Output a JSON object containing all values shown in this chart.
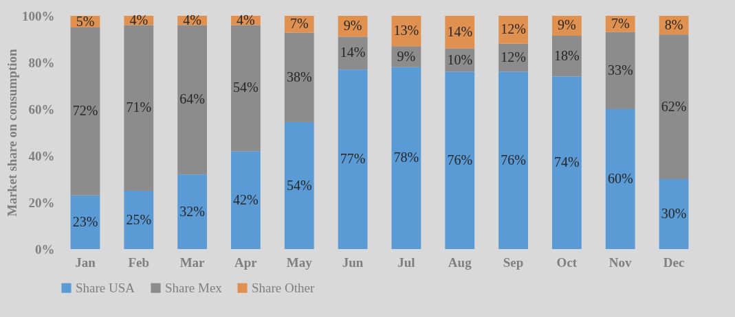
{
  "chart_data": {
    "type": "bar",
    "stacked": true,
    "ylabel": "Market share on consumption",
    "categories": [
      "Jan",
      "Feb",
      "Mar",
      "Apr",
      "May",
      "Jun",
      "Jul",
      "Aug",
      "Sep",
      "Oct",
      "Nov",
      "Dec"
    ],
    "series": [
      {
        "name": "Share USA",
        "color": "#5b9bd5",
        "values": [
          23,
          25,
          32,
          42,
          54.4,
          77,
          78,
          76,
          76,
          74,
          60,
          30
        ],
        "value_labels": [
          "23%",
          "25%",
          "32%",
          "42%",
          "54%",
          "77%",
          "78%",
          "76%",
          "76%",
          "74%",
          "60%",
          "30%"
        ]
      },
      {
        "name": "Share Mex",
        "color": "#8c8c8c",
        "values": [
          72,
          71,
          64,
          54,
          38.4,
          14,
          9,
          10,
          12,
          17.5,
          33,
          62
        ],
        "value_labels": [
          "72%",
          "71%",
          "64%",
          "54%",
          "38%",
          "14%",
          "9%",
          "10%",
          "12%",
          "18%",
          "33%",
          "62%"
        ]
      },
      {
        "name": "Share Other",
        "color": "#e0914f",
        "values": [
          5,
          4,
          4,
          4,
          7.2,
          9,
          13,
          14,
          12,
          8.5,
          7,
          8
        ],
        "value_labels": [
          "5%",
          "4%",
          "4%",
          "4%",
          "7%",
          "9%",
          "13%",
          "14%",
          "12%",
          "9%",
          "7%",
          "8%"
        ]
      }
    ],
    "ylim": [
      0,
      100
    ],
    "yticks": [
      {
        "value": 0,
        "label": "0%"
      },
      {
        "value": 20,
        "label": "20%"
      },
      {
        "value": 40,
        "label": "40%"
      },
      {
        "value": 60,
        "label": "60%"
      },
      {
        "value": 80,
        "label": "80%"
      },
      {
        "value": 100,
        "label": "100%"
      }
    ],
    "legend": "bottom"
  }
}
